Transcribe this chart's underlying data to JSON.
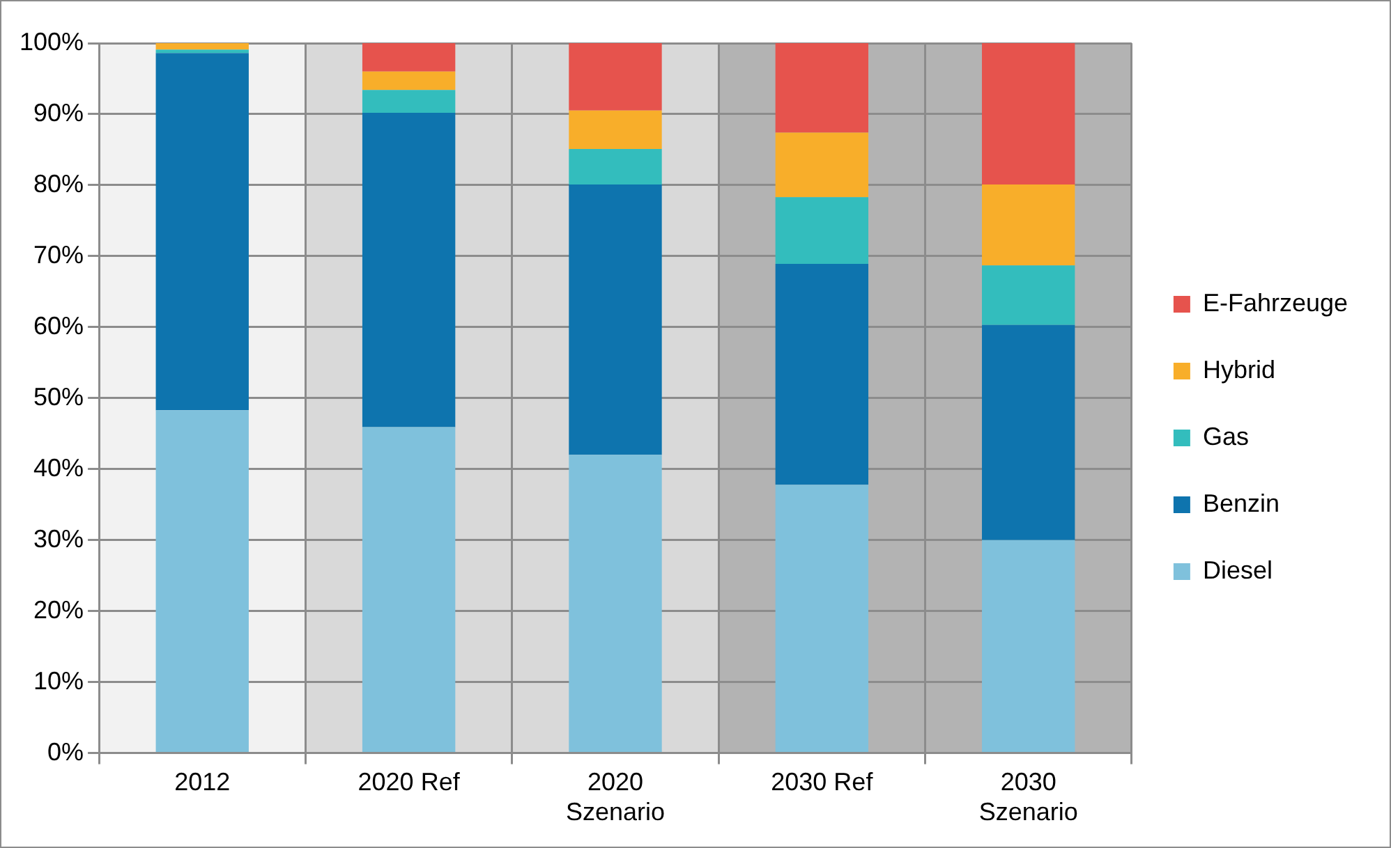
{
  "chart_data": {
    "type": "bar",
    "stacked": true,
    "categories": [
      "2012",
      "2020 Ref",
      "2020 Szenario",
      "2030 Ref",
      "2030 Szenario"
    ],
    "series": [
      {
        "name": "Diesel",
        "color": "#7fc1dc",
        "values": [
          48.3,
          45.9,
          42.0,
          37.8,
          30.0
        ]
      },
      {
        "name": "Benzin",
        "color": "#0e74ae",
        "values": [
          50.3,
          44.3,
          38.1,
          31.1,
          30.3
        ]
      },
      {
        "name": "Gas",
        "color": "#33bdbd",
        "values": [
          0.5,
          3.2,
          5.0,
          9.4,
          8.4
        ]
      },
      {
        "name": "Hybrid",
        "color": "#f8ae2a",
        "values": [
          0.9,
          2.6,
          5.4,
          9.1,
          11.4
        ]
      },
      {
        "name": "E-Fahrzeuge",
        "color": "#e6534d",
        "values": [
          0,
          4.0,
          9.5,
          12.6,
          19.9
        ]
      }
    ],
    "ylim": [
      0,
      100
    ],
    "yticks": [
      {
        "value": 0,
        "label": "0%"
      },
      {
        "value": 10,
        "label": "10%"
      },
      {
        "value": 20,
        "label": "20%"
      },
      {
        "value": 30,
        "label": "30%"
      },
      {
        "value": 40,
        "label": "40%"
      },
      {
        "value": 50,
        "label": "50%"
      },
      {
        "value": 60,
        "label": "60%"
      },
      {
        "value": 70,
        "label": "70%"
      },
      {
        "value": 80,
        "label": "80%"
      },
      {
        "value": 90,
        "label": "90%"
      },
      {
        "value": 100,
        "label": "100%"
      }
    ],
    "grid": true,
    "legend": "right"
  }
}
